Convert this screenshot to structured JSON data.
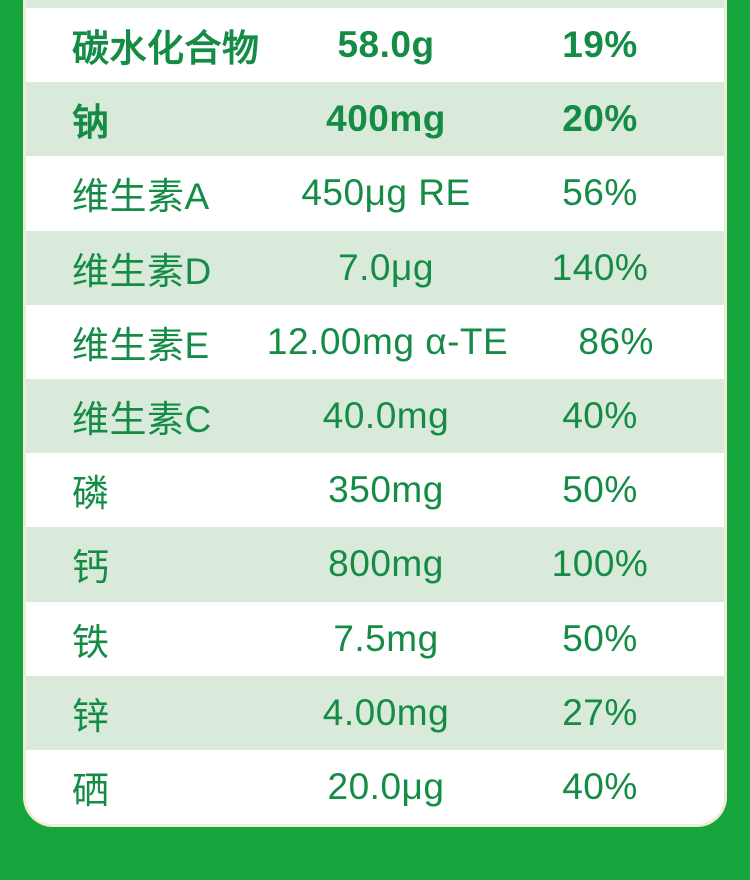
{
  "page": {
    "background_color": "#15a53c",
    "card_background": "#ffffff",
    "card_border_color": "#f2ecd5",
    "row_alt_background": "#d9e9da",
    "text_color": "#148c46"
  },
  "table": {
    "rows": [
      {
        "name": "碳水化合物",
        "amount": "58.0g",
        "nrv": "19%",
        "bold": true,
        "alt": false
      },
      {
        "name": "钠",
        "amount": "400mg",
        "nrv": "20%",
        "bold": true,
        "alt": true
      },
      {
        "name": "维生素A",
        "amount": "450μg RE",
        "nrv": "56%",
        "bold": false,
        "alt": false
      },
      {
        "name": "维生素D",
        "amount": "7.0μg",
        "nrv": "140%",
        "bold": false,
        "alt": true
      },
      {
        "name": "维生素E",
        "amount": "12.00mg α-TE",
        "nrv": "86%",
        "bold": false,
        "alt": false
      },
      {
        "name": "维生素C",
        "amount": "40.0mg",
        "nrv": "40%",
        "bold": false,
        "alt": true
      },
      {
        "name": "磷",
        "amount": "350mg",
        "nrv": "50%",
        "bold": false,
        "alt": false
      },
      {
        "name": "钙",
        "amount": "800mg",
        "nrv": "100%",
        "bold": false,
        "alt": true
      },
      {
        "name": "铁",
        "amount": "7.5mg",
        "nrv": "50%",
        "bold": false,
        "alt": false
      },
      {
        "name": "锌",
        "amount": "4.00mg",
        "nrv": "27%",
        "bold": false,
        "alt": true
      },
      {
        "name": "硒",
        "amount": "20.0μg",
        "nrv": "40%",
        "bold": false,
        "alt": false
      }
    ]
  }
}
